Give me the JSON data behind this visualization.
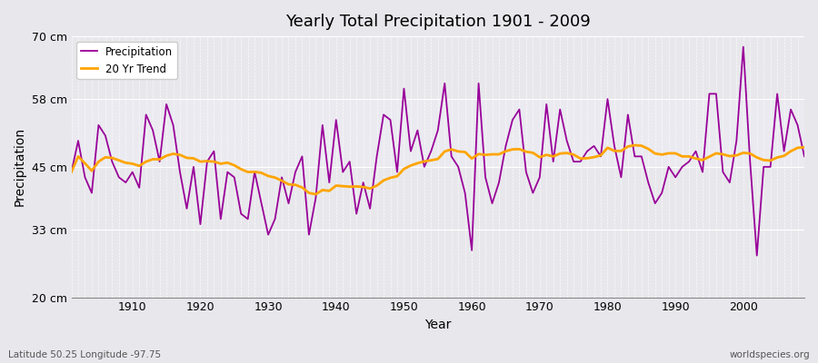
{
  "title": "Yearly Total Precipitation 1901 - 2009",
  "xlabel": "Year",
  "ylabel": "Precipitation",
  "subtitle_left": "Latitude 50.25 Longitude -97.75",
  "subtitle_right": "worldspecies.org",
  "ylim": [
    20,
    70
  ],
  "yticks": [
    20,
    33,
    45,
    58,
    70
  ],
  "ytick_labels": [
    "20 cm",
    "33 cm",
    "45 cm",
    "58 cm",
    "70 cm"
  ],
  "xlim": [
    1901,
    2009
  ],
  "xticks": [
    1910,
    1920,
    1930,
    1940,
    1950,
    1960,
    1970,
    1980,
    1990,
    2000
  ],
  "precip_color": "#990099",
  "trend_color": "#FFA500",
  "bg_color": "#E8E8EC",
  "bg_inner_light": "#EEEEF4",
  "bg_inner_dark": "#DCDCE4",
  "grid_color": "#FFFFFF",
  "legend_entries": [
    "Precipitation",
    "20 Yr Trend"
  ],
  "years": [
    1901,
    1902,
    1903,
    1904,
    1905,
    1906,
    1907,
    1908,
    1909,
    1910,
    1911,
    1912,
    1913,
    1914,
    1915,
    1916,
    1917,
    1918,
    1919,
    1920,
    1921,
    1922,
    1923,
    1924,
    1925,
    1926,
    1927,
    1928,
    1929,
    1930,
    1931,
    1932,
    1933,
    1934,
    1935,
    1936,
    1937,
    1938,
    1939,
    1940,
    1941,
    1942,
    1943,
    1944,
    1945,
    1946,
    1947,
    1948,
    1949,
    1950,
    1951,
    1952,
    1953,
    1954,
    1955,
    1956,
    1957,
    1958,
    1959,
    1960,
    1961,
    1962,
    1963,
    1964,
    1965,
    1966,
    1967,
    1968,
    1969,
    1970,
    1971,
    1972,
    1973,
    1974,
    1975,
    1976,
    1977,
    1978,
    1979,
    1980,
    1981,
    1982,
    1983,
    1984,
    1985,
    1986,
    1987,
    1988,
    1989,
    1990,
    1991,
    1992,
    1993,
    1994,
    1995,
    1996,
    1997,
    1998,
    1999,
    2000,
    2001,
    2002,
    2003,
    2004,
    2005,
    2006,
    2007,
    2008,
    2009
  ],
  "precip": [
    44,
    50,
    43,
    40,
    53,
    51,
    46,
    43,
    42,
    44,
    41,
    55,
    52,
    46,
    57,
    53,
    44,
    37,
    45,
    34,
    46,
    48,
    35,
    44,
    43,
    36,
    35,
    44,
    38,
    32,
    35,
    43,
    38,
    44,
    47,
    32,
    39,
    53,
    42,
    54,
    44,
    46,
    36,
    42,
    37,
    47,
    55,
    54,
    44,
    60,
    48,
    52,
    45,
    48,
    52,
    61,
    47,
    45,
    40,
    29,
    61,
    43,
    38,
    42,
    49,
    54,
    56,
    44,
    40,
    43,
    57,
    46,
    56,
    50,
    46,
    46,
    48,
    49,
    47,
    58,
    49,
    43,
    55,
    47,
    47,
    42,
    38,
    40,
    45,
    43,
    45,
    46,
    48,
    44,
    59,
    59,
    44,
    42,
    50,
    68,
    46,
    28,
    45,
    45,
    59,
    48,
    56,
    53,
    47
  ]
}
